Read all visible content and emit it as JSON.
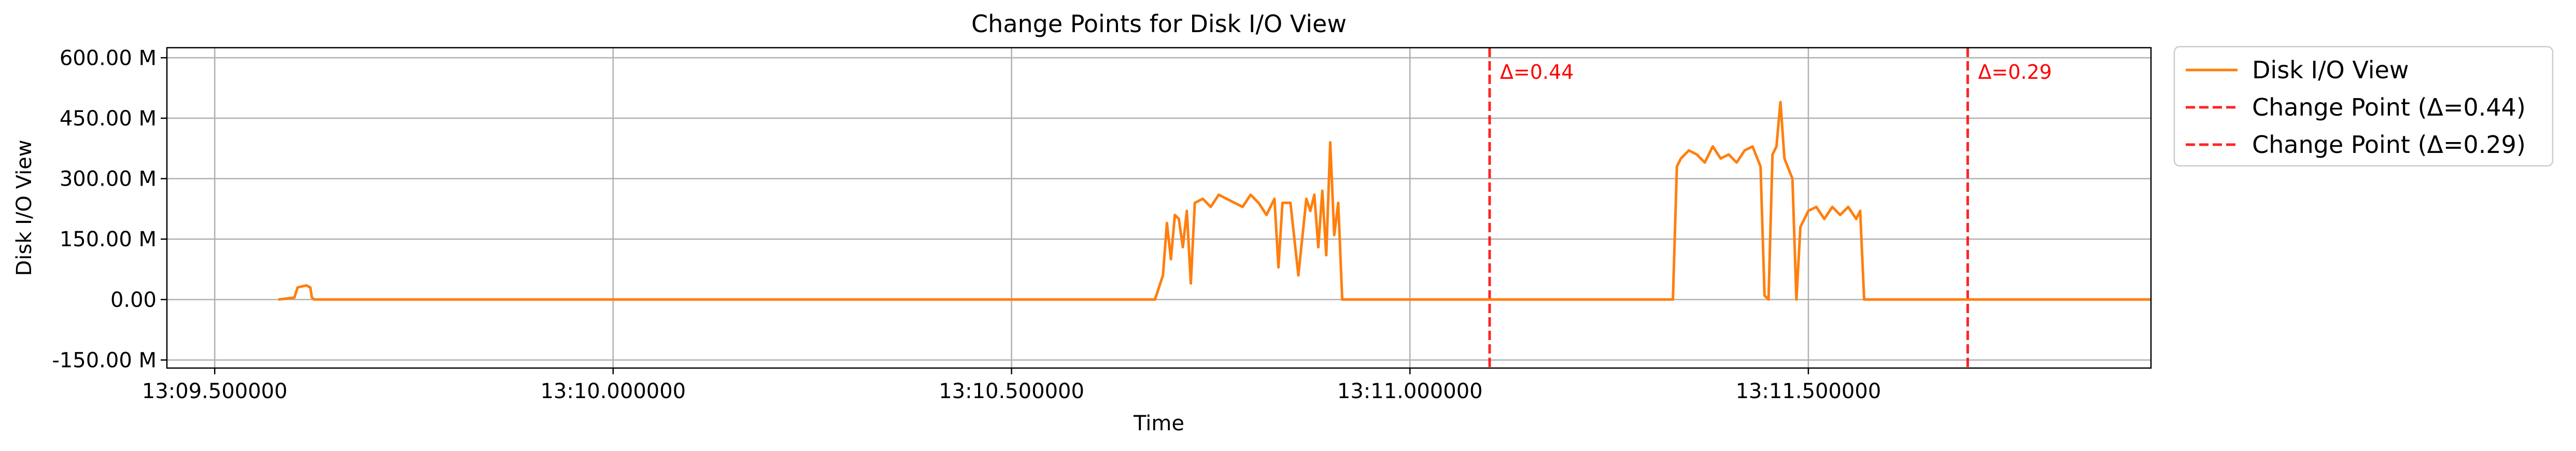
{
  "chart_data": {
    "type": "line",
    "title": "Change Points for Disk I/O View",
    "xlabel": "Time",
    "ylabel": "Disk I/O View",
    "grid": true,
    "legend_placement": "outside-top-right",
    "xlim": [
      -0.06,
      2.43
    ],
    "ylim": [
      -170,
      625
    ],
    "x_ticks": [
      {
        "value": 0.0,
        "label": "13:09.500000"
      },
      {
        "value": 0.5,
        "label": "13:10.000000"
      },
      {
        "value": 1.0,
        "label": "13:10.500000"
      },
      {
        "value": 1.5,
        "label": "13:11.000000"
      },
      {
        "value": 2.0,
        "label": "13:11.500000"
      }
    ],
    "y_ticks": [
      {
        "value": -150,
        "label": "-150.00 M"
      },
      {
        "value": 0,
        "label": "0.00"
      },
      {
        "value": 150,
        "label": "150.00 M"
      },
      {
        "value": 300,
        "label": "300.00 M"
      },
      {
        "value": 450,
        "label": "450.00 M"
      },
      {
        "value": 600,
        "label": "600.00 M"
      }
    ],
    "series": [
      {
        "name": "Disk I/O View",
        "color": "#ff7f0e",
        "x": [
          0.08,
          0.1,
          0.104,
          0.108,
          0.115,
          0.12,
          0.122,
          0.125,
          1.18,
          1.19,
          1.195,
          1.2,
          1.205,
          1.21,
          1.215,
          1.22,
          1.225,
          1.23,
          1.24,
          1.25,
          1.26,
          1.27,
          1.28,
          1.29,
          1.3,
          1.31,
          1.32,
          1.33,
          1.335,
          1.34,
          1.35,
          1.36,
          1.37,
          1.375,
          1.38,
          1.385,
          1.39,
          1.395,
          1.4,
          1.405,
          1.41,
          1.415,
          1.83,
          1.835,
          1.84,
          1.85,
          1.86,
          1.87,
          1.88,
          1.89,
          1.9,
          1.91,
          1.92,
          1.93,
          1.94,
          1.945,
          1.95,
          1.955,
          1.96,
          1.965,
          1.97,
          1.98,
          1.985,
          1.99,
          2.0,
          2.01,
          2.02,
          2.03,
          2.04,
          2.05,
          2.06,
          2.065,
          2.07,
          2.08,
          2.09,
          2.1,
          2.11,
          2.12,
          2.13,
          2.135,
          2.43
        ],
        "values": [
          0,
          5,
          30,
          32,
          35,
          30,
          5,
          0,
          0,
          60,
          190,
          100,
          210,
          200,
          130,
          220,
          40,
          240,
          250,
          230,
          260,
          250,
          240,
          230,
          260,
          240,
          210,
          250,
          80,
          240,
          240,
          60,
          250,
          220,
          260,
          130,
          270,
          110,
          390,
          160,
          240,
          0,
          0,
          330,
          350,
          370,
          360,
          340,
          380,
          350,
          360,
          340,
          370,
          380,
          330,
          10,
          0,
          360,
          380,
          490,
          350,
          300,
          0,
          180,
          220,
          230,
          200,
          230,
          210,
          230,
          200,
          220,
          0,
          0,
          0,
          0,
          0,
          0,
          0,
          0,
          0
        ]
      }
    ],
    "change_points": [
      {
        "x": 1.6,
        "delta": 0.44,
        "label": "Δ=0.44",
        "legend": "Change Point (Δ=0.44)",
        "color": "#ff0000"
      },
      {
        "x": 2.2,
        "delta": 0.29,
        "label": "Δ=0.29",
        "legend": "Change Point (Δ=0.29)",
        "color": "#ff0000"
      }
    ]
  }
}
